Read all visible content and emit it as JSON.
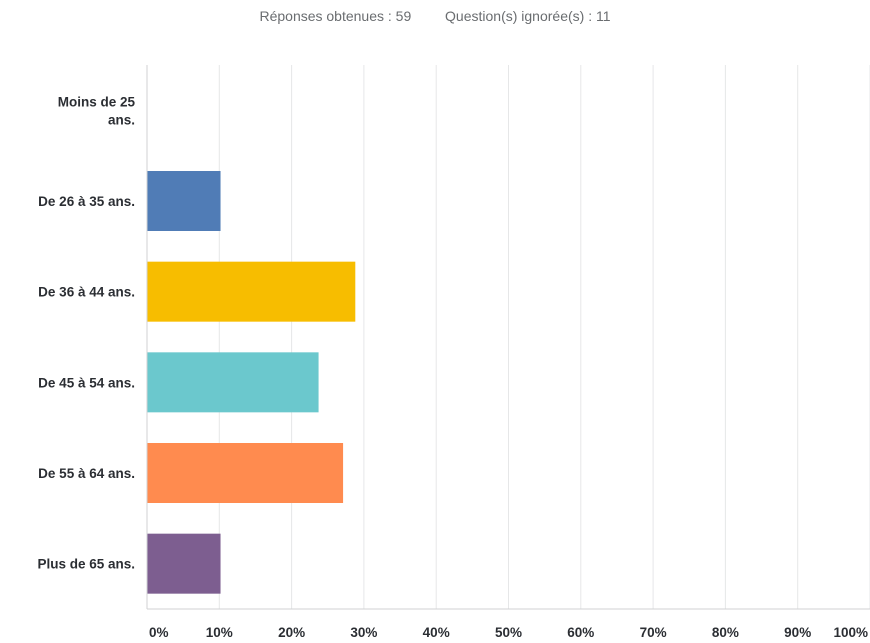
{
  "summary": {
    "answered": "Réponses obtenues : 59",
    "skipped": "Question(s) ignorée(s) : 11"
  },
  "chart_data": {
    "type": "bar",
    "orientation": "horizontal",
    "categories": [
      [
        "Moins de 25",
        "ans."
      ],
      [
        "De 26 à 35 ans."
      ],
      [
        "De 36 à 44 ans."
      ],
      [
        "De 45 à 54 ans."
      ],
      [
        "De 55 à 64 ans."
      ],
      [
        "Plus de 65 ans."
      ]
    ],
    "values": [
      0,
      10.17,
      28.81,
      23.73,
      27.12,
      10.17
    ],
    "colors": [
      "#507cb6",
      "#507cb6",
      "#f7bd00",
      "#6bc8cd",
      "#ff8b4f",
      "#7d5e90"
    ],
    "xlim": [
      0,
      100
    ],
    "xticks": [
      "0%",
      "10%",
      "20%",
      "30%",
      "40%",
      "50%",
      "60%",
      "70%",
      "80%",
      "90%",
      "100%"
    ],
    "grid": true,
    "title": "",
    "xlabel": "",
    "ylabel": ""
  }
}
